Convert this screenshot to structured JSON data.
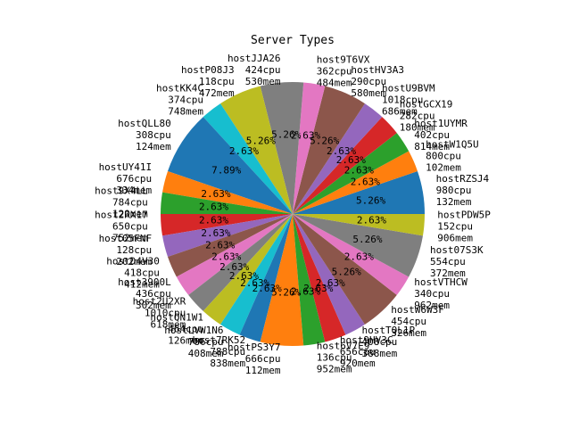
{
  "chart_data": {
    "type": "pie",
    "title": "Server Types",
    "start_angle_deg": 0,
    "direction": "counterclockwise",
    "colors": [
      "#1f77b4",
      "#ff7f0e",
      "#2ca02c",
      "#d62728",
      "#9467bd",
      "#8c564b",
      "#e377c2",
      "#7f7f7f",
      "#bcbd22",
      "#17becf"
    ],
    "slices": [
      {
        "label": "hostRZSJ4\n980cpu\n132mem",
        "value": 5.26,
        "pct": "5.26%"
      },
      {
        "label": "hostW1Q5U\n800cpu\n102mem",
        "value": 2.63,
        "pct": "2.63%"
      },
      {
        "label": "host1UYMR\n402cpu\n814mem",
        "value": 2.63,
        "pct": "2.63%"
      },
      {
        "label": "hostGCX19\n282cpu\n180mem",
        "value": 2.63,
        "pct": "2.63%"
      },
      {
        "label": "hostU9BVM\n1018cpu\n686mem",
        "value": 2.63,
        "pct": "2.63%"
      },
      {
        "label": "hostHV3A3\n290cpu\n580mem",
        "value": 5.26,
        "pct": "5.26%"
      },
      {
        "label": "host9T6VX\n362cpu\n484mem",
        "value": 2.63,
        "pct": "2.63%"
      },
      {
        "label": "hostJJA26\n424cpu\n530mem",
        "value": 5.26,
        "pct": "5.26%"
      },
      {
        "label": "hostP08J3\n118cpu\n472mem",
        "value": 5.26,
        "pct": "5.26%"
      },
      {
        "label": "hostKK4C\n374cpu\n748mem",
        "value": 2.63,
        "pct": "2.63%"
      },
      {
        "label": "hostQLL80\n308cpu\n124mem",
        "value": 7.89,
        "pct": "7.89%"
      },
      {
        "label": "hostUY41I\n676cpu\n334mem",
        "value": 2.63,
        "pct": "2.63%"
      },
      {
        "label": "host9X4LL\n784cpu\n120mem",
        "value": 2.63,
        "pct": "2.63%"
      },
      {
        "label": "host2RX17\n650cpu\n752mem",
        "value": 2.63,
        "pct": "2.63%"
      },
      {
        "label": "host05FNF\n128cpu\n202mem",
        "value": 2.63,
        "pct": "2.63%"
      },
      {
        "label": "hostD4V30\n418cpu\n412mem",
        "value": 2.63,
        "pct": "2.63%"
      },
      {
        "label": "host3900L\n436cpu\n302mem",
        "value": 2.63,
        "pct": "2.63%"
      },
      {
        "label": "host2U2XR\n1010cpu\n618mem",
        "value": 2.63,
        "pct": "2.63%"
      },
      {
        "label": "hostQN1W1\n464cpu\n126mem",
        "value": 2.63,
        "pct": "2.63%"
      },
      {
        "label": "hostLVW1N6\n786cpu\n408mem",
        "value": 2.63,
        "pct": "2.63%"
      },
      {
        "label": "host7RK52\n788cpu\n838mem",
        "value": 2.63,
        "pct": "2.63%"
      },
      {
        "label": "hostPS3Y7\n666cpu\n112mem",
        "value": 5.26,
        "pct": "5.26%"
      },
      {
        "label": "host6V7E9\n136cpu\n952mem",
        "value": 2.63,
        "pct": "2.63%"
      },
      {
        "label": "host9HV3C\n656cpu\n920mem",
        "value": 2.63,
        "pct": "2.63%"
      },
      {
        "label": "hostTQL1P\n408cpu\n388mem",
        "value": 2.63,
        "pct": "2.63%"
      },
      {
        "label": "hostW6W3F\n454cpu\n326mem",
        "value": 5.26,
        "pct": "5.26%"
      },
      {
        "label": "hostVTHCW\n340cpu\n962mem",
        "value": 2.63,
        "pct": "2.63%"
      },
      {
        "label": "host07S3K\n554cpu\n372mem",
        "value": 5.26,
        "pct": "5.26%"
      },
      {
        "label": "hostPDW5P\n152cpu\n906mem",
        "value": 2.63,
        "pct": "2.63%"
      }
    ]
  }
}
